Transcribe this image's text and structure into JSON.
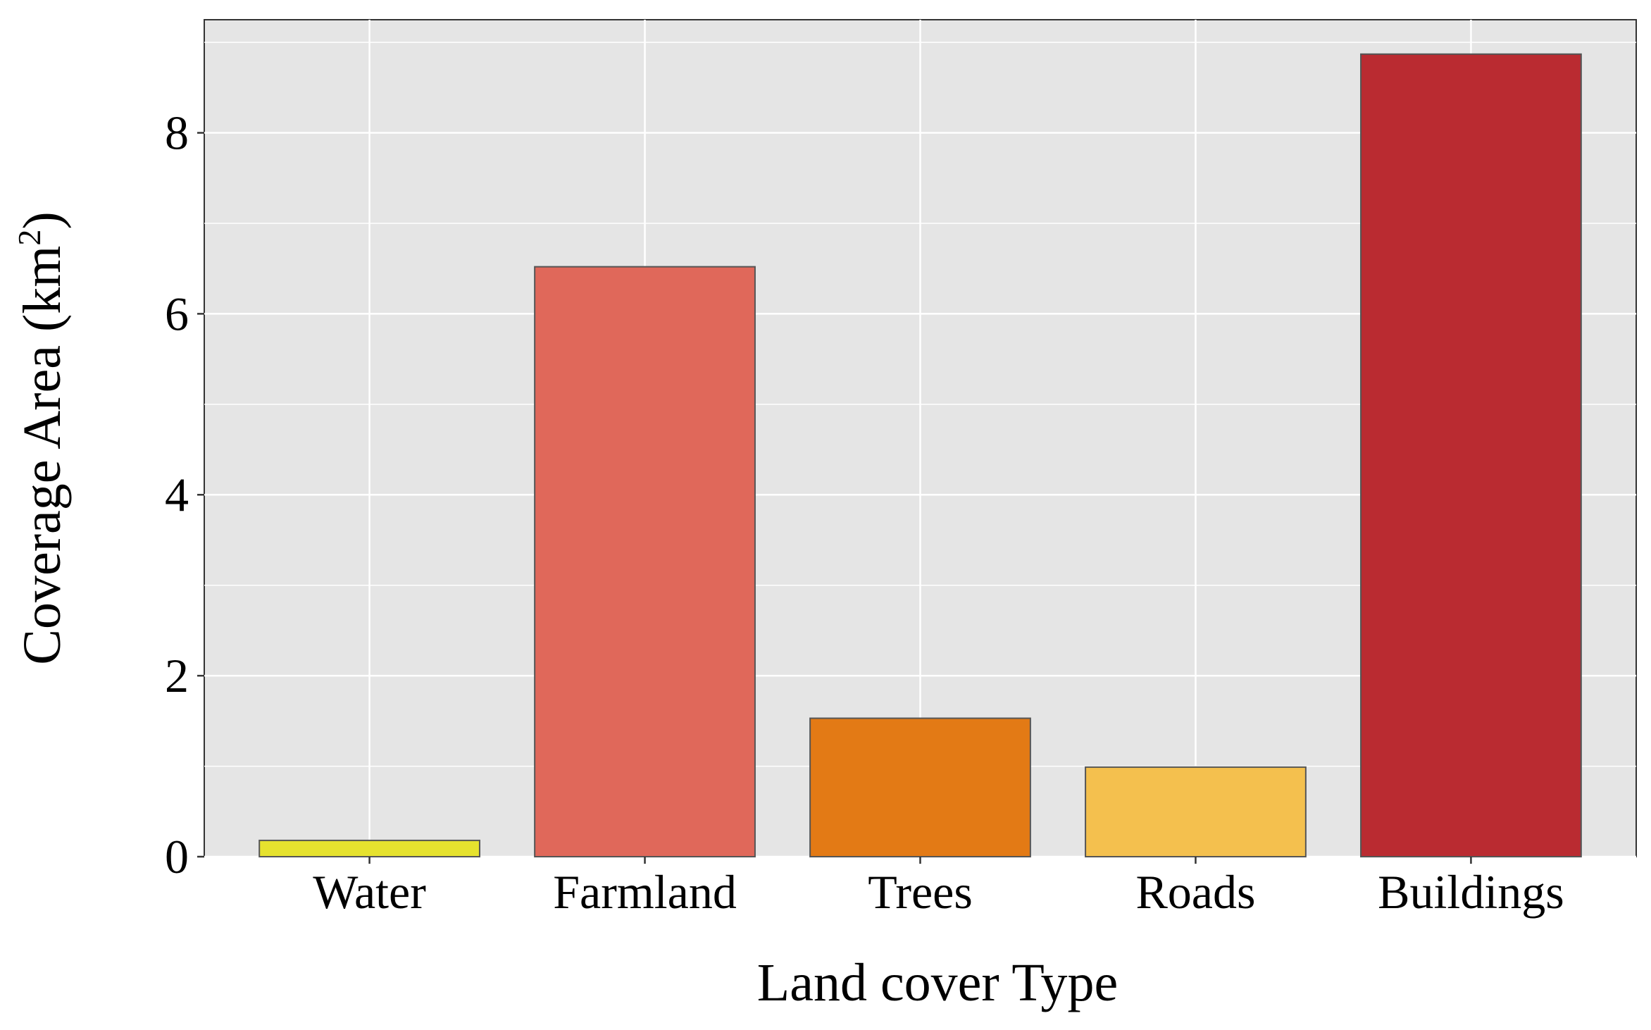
{
  "chart_data": {
    "type": "bar",
    "title": "",
    "xlabel": "Land cover Type",
    "ylabel": "Coverage Area (km",
    "ylabel_superscript": "2",
    "ylabel_suffix": ")",
    "categories": [
      "Water",
      "Farmland",
      "Trees",
      "Roads",
      "Buildings"
    ],
    "values": [
      0.18,
      6.52,
      1.53,
      0.99,
      8.87
    ],
    "colors": [
      "#e6e22e",
      "#e0685a",
      "#e37a15",
      "#f4c04e",
      "#ba2b31"
    ],
    "ylim": [
      0,
      9.25
    ],
    "yticks": [
      0,
      2,
      4,
      6,
      8
    ],
    "yticks_labels": [
      "0",
      "2",
      "4",
      "6",
      "8"
    ],
    "grid": true,
    "legend": "none",
    "panel_background": "#e5e5e5",
    "grid_color": "#ffffff",
    "bar_edge_color": "#555555"
  }
}
